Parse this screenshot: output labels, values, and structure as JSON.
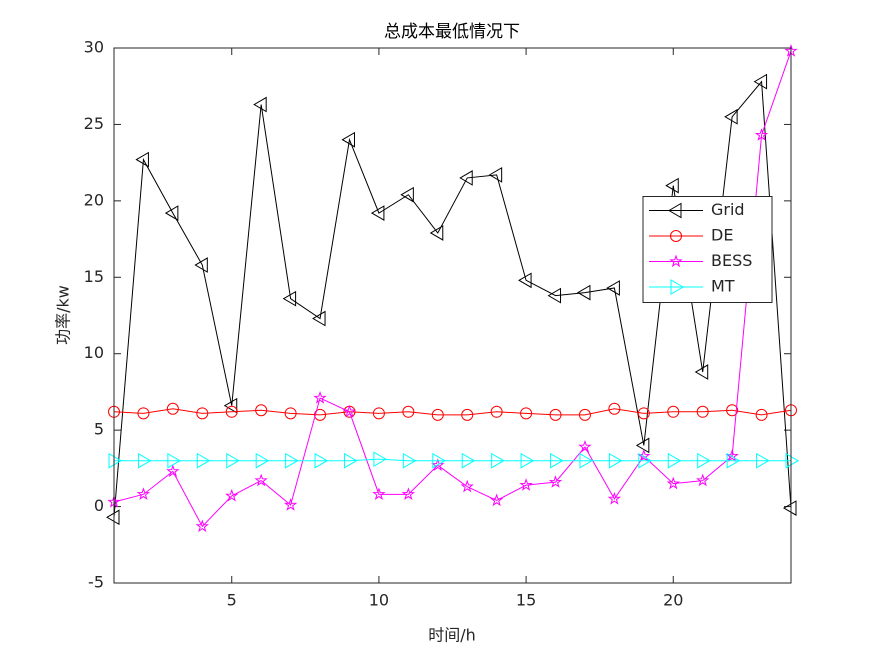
{
  "chart_data": {
    "type": "line",
    "title": "总成本最低情况下",
    "x_label": "时间/h",
    "y_label": "功率/kw",
    "x": [
      1,
      2,
      3,
      4,
      5,
      6,
      7,
      8,
      9,
      10,
      11,
      12,
      13,
      14,
      15,
      16,
      17,
      18,
      19,
      20,
      21,
      22,
      23,
      24
    ],
    "series": [
      {
        "name": "Grid",
        "color": "#000000",
        "marker": "triangle-left",
        "values": [
          -0.7,
          22.7,
          19.2,
          15.8,
          6.6,
          26.3,
          13.6,
          12.3,
          24.0,
          19.2,
          20.4,
          17.9,
          21.5,
          21.7,
          14.8,
          13.8,
          14.0,
          14.3,
          4.0,
          21.0,
          8.8,
          25.5,
          27.8,
          -0.1
        ]
      },
      {
        "name": "DE",
        "color": "#ff0000",
        "marker": "circle",
        "values": [
          6.2,
          6.1,
          6.4,
          6.1,
          6.2,
          6.3,
          6.1,
          6.0,
          6.2,
          6.1,
          6.2,
          6.0,
          6.0,
          6.2,
          6.1,
          6.0,
          6.0,
          6.4,
          6.1,
          6.2,
          6.2,
          6.3,
          6.0,
          6.3
        ]
      },
      {
        "name": "BESS",
        "color": "#ff00ff",
        "marker": "star",
        "values": [
          0.3,
          0.8,
          2.3,
          -1.3,
          0.7,
          1.7,
          0.1,
          7.1,
          6.2,
          0.8,
          0.8,
          2.7,
          1.3,
          0.4,
          1.4,
          1.6,
          3.9,
          0.5,
          3.3,
          1.5,
          1.7,
          3.3,
          24.3,
          29.8
        ]
      },
      {
        "name": "MT",
        "color": "#00ffff",
        "marker": "triangle-right",
        "values": [
          3.0,
          3.0,
          3.0,
          3.0,
          3.0,
          3.0,
          3.0,
          3.0,
          3.0,
          3.1,
          3.0,
          3.0,
          3.0,
          3.0,
          3.0,
          3.0,
          3.0,
          3.0,
          3.0,
          3.0,
          3.0,
          3.0,
          3.0,
          3.0
        ]
      }
    ],
    "xlim": [
      1,
      24
    ],
    "xticks": [
      5,
      10,
      15,
      20
    ],
    "ylim": [
      -5,
      30
    ],
    "yticks": [
      -5,
      0,
      5,
      10,
      15,
      20,
      25,
      30
    ],
    "grid": false,
    "legend": "east"
  }
}
